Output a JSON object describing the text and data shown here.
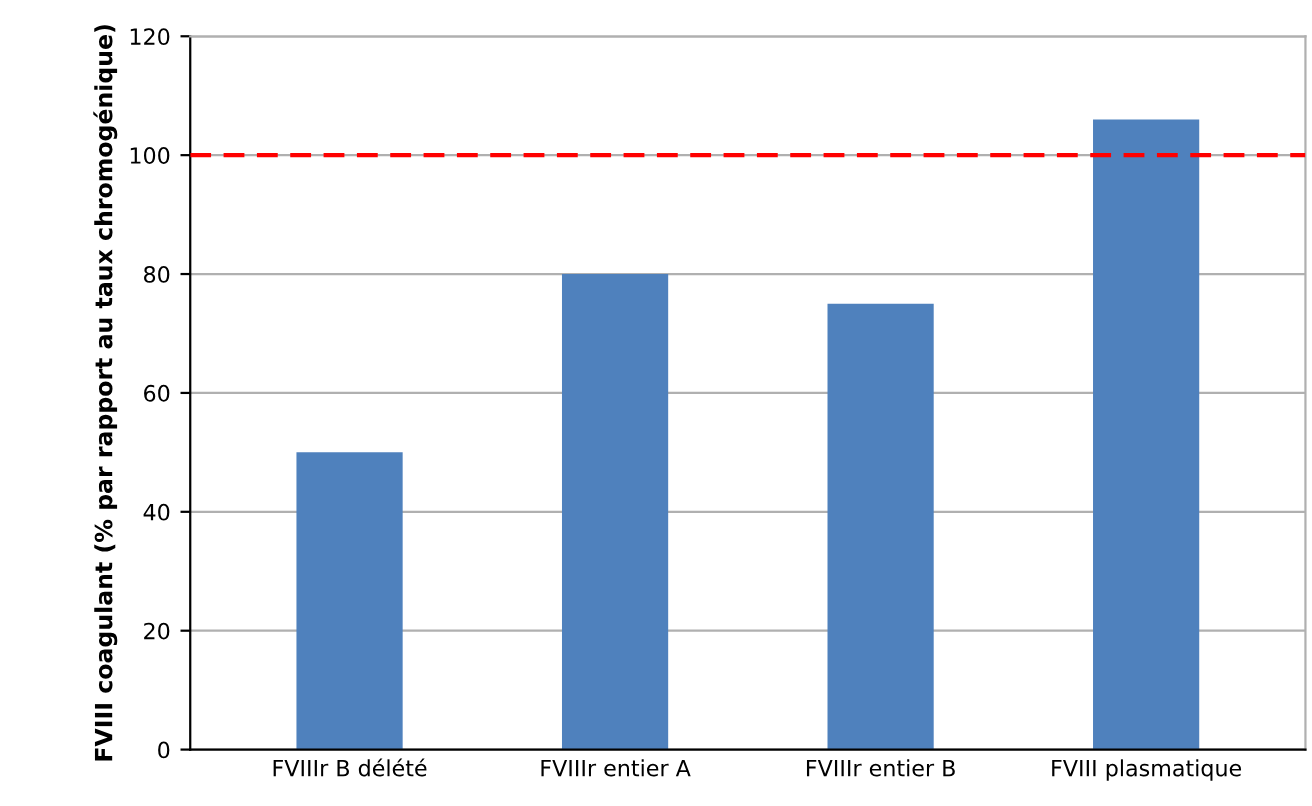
{
  "chart_data": {
    "type": "bar",
    "ylabel": "FVIII coagulant (% par rapport au taux chromogénique)",
    "categories": [
      "FVIIIr B délété",
      "FVIIIr entier A",
      "FVIIIr entier B",
      "FVIII plasmatique"
    ],
    "values": [
      50,
      80,
      75,
      106
    ],
    "color": "#4f81bd",
    "ylim": [
      0,
      120
    ],
    "yticks": [
      0,
      20,
      40,
      60,
      80,
      100,
      120
    ],
    "grid": "y",
    "ref_lines": [
      {
        "axis": "y",
        "value": 100,
        "color": "#ff0000",
        "line_style": "dashed"
      }
    ]
  }
}
